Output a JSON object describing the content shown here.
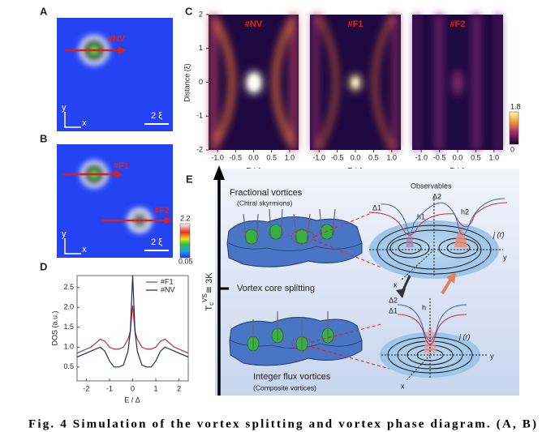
{
  "caption": "Fig. 4 Simulation of the vortex splitting and vortex phase diagram. (A, B)",
  "panel_a": {
    "label": "A",
    "tag": "#NV",
    "scale": "2 ξ",
    "axis_y": "y",
    "axis_x": "x"
  },
  "panel_b": {
    "label": "B",
    "tags": [
      "#F1",
      "#F2"
    ],
    "scale": "2 ξ",
    "axis_y": "y",
    "axis_x": "x",
    "colorbar": [
      2.2,
      0.05
    ]
  },
  "panel_c": {
    "label": "C",
    "ylabel": "Distance (ξ)",
    "xlabel": "E / Δ",
    "maps": [
      "#NV",
      "#F1",
      "#F2"
    ],
    "xlim": [
      -1.25,
      1.25
    ],
    "xticks": [
      {
        "value": -1,
        "label": "-1.0"
      },
      -0.5,
      {
        "value": 0,
        "label": "0.0"
      },
      0.5,
      {
        "value": 1,
        "label": "1.0"
      }
    ],
    "ylim": [
      -2,
      2
    ],
    "yticks": [
      -2,
      -1,
      0,
      1,
      2
    ],
    "colorbar": [
      1.8,
      0
    ]
  },
  "panel_e": {
    "label": "E",
    "upper_title": "Fractional vortices",
    "upper_sub": "(Chiral skyrmions)",
    "middle": "Vortex core splitting",
    "lower_title": "Integer flux vortices",
    "lower_sub": "(Composite vortices)",
    "tc": "T",
    "tc_sub": "c",
    "tc_sup": "VS",
    "tc_value": "≅ 3K",
    "observables": "Observables",
    "upper_delta1": "Δ1",
    "upper_delta2": "Δ2",
    "h1": "h1",
    "h2": "h2",
    "upper_j": "j (r)",
    "upper_x": "x",
    "upper_y": "y",
    "lower_delta2": "Δ2",
    "lower_delta1": "Δ1",
    "lower_h": "h",
    "lower_j": "j (r)",
    "lower_x": "x",
    "lower_y": "y"
  },
  "chart_data": {
    "type": "line",
    "label": "D",
    "xlabel": "E / Δ",
    "ylabel": "DOS (a.u.)",
    "x": [
      -2.4,
      -2.2,
      -2.0,
      -1.8,
      -1.6,
      -1.4,
      -1.2,
      -1.0,
      -0.8,
      -0.6,
      -0.4,
      -0.2,
      -0.1,
      0,
      0.1,
      0.2,
      0.4,
      0.6,
      0.8,
      1.0,
      1.2,
      1.4,
      1.6,
      1.8,
      2.0,
      2.2,
      2.4
    ],
    "series": [
      {
        "name": "#F1",
        "color": "#b0303f",
        "values": [
          0.85,
          0.9,
          0.95,
          1.0,
          1.1,
          1.2,
          1.15,
          1.0,
          0.95,
          0.95,
          1.0,
          1.2,
          1.4,
          2.05,
          1.4,
          1.2,
          1.0,
          0.95,
          0.95,
          1.0,
          1.15,
          1.2,
          1.1,
          1.0,
          0.95,
          0.9,
          0.85
        ]
      },
      {
        "name": "#NV",
        "color": "#1c2a5c",
        "values": [
          0.75,
          0.8,
          0.85,
          0.9,
          0.95,
          1.0,
          0.9,
          0.65,
          0.5,
          0.5,
          0.55,
          0.9,
          1.4,
          2.8,
          1.4,
          0.9,
          0.55,
          0.5,
          0.5,
          0.65,
          0.9,
          1.0,
          0.95,
          0.9,
          0.85,
          0.8,
          0.75
        ]
      }
    ],
    "xlim": [
      -2.4,
      2.4
    ],
    "xticks": [
      -2,
      -1,
      0,
      1,
      2
    ],
    "ylim": [
      0.15,
      2.8
    ],
    "yticks": [
      0.5,
      {
        "value": 1,
        "label": "1.0"
      },
      1.5,
      {
        "value": 2,
        "label": "2.0"
      },
      2.5
    ],
    "legend": "upper right"
  }
}
